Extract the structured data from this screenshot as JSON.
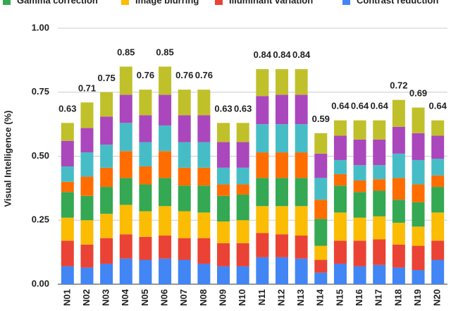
{
  "chart_data": {
    "type": "stacked_bar",
    "ylabel": "Visual Intelligence (%)",
    "categories": [
      "N01",
      "N02",
      "N03",
      "N04",
      "N05",
      "N06",
      "N07",
      "N08",
      "N09",
      "N10",
      "N11",
      "N12",
      "N13",
      "N14",
      "N15",
      "N16",
      "N17",
      "N18",
      "N19",
      "N20"
    ],
    "series": [
      {
        "name": "Contrast reduction",
        "color": "#4285f4",
        "values": [
          0.07,
          0.065,
          0.08,
          0.1,
          0.095,
          0.1,
          0.095,
          0.08,
          0.07,
          0.07,
          0.105,
          0.105,
          0.1,
          0.045,
          0.08,
          0.07,
          0.075,
          0.065,
          0.055,
          0.095
        ]
      },
      {
        "name": "Illuminant variation",
        "color": "#ea4335",
        "values": [
          0.1,
          0.09,
          0.1,
          0.095,
          0.09,
          0.09,
          0.085,
          0.1,
          0.09,
          0.09,
          0.095,
          0.09,
          0.09,
          0.05,
          0.09,
          0.1,
          0.1,
          0.09,
          0.095,
          0.075
        ]
      },
      {
        "name": "Image blurring",
        "color": "#fbbc04",
        "values": [
          0.09,
          0.095,
          0.095,
          0.115,
          0.1,
          0.115,
          0.105,
          0.1,
          0.085,
          0.09,
          0.105,
          0.11,
          0.115,
          0.055,
          0.11,
          0.09,
          0.09,
          0.085,
          0.075,
          0.11
        ]
      },
      {
        "name": "Gamma correction",
        "color": "#34a853",
        "values": [
          0.1,
          0.095,
          0.105,
          0.105,
          0.105,
          0.11,
          0.1,
          0.105,
          0.1,
          0.1,
          0.11,
          0.11,
          0.11,
          0.105,
          0.105,
          0.1,
          0.1,
          0.09,
          0.095,
          0.1
        ]
      },
      {
        "color": "#ff6d01",
        "values": [
          0.04,
          0.075,
          0.075,
          0.105,
          0.07,
          0.105,
          0.07,
          0.07,
          0.045,
          0.04,
          0.1,
          0.1,
          0.1,
          0.075,
          0.045,
          0.045,
          0.045,
          0.085,
          0.07,
          0.045
        ]
      },
      {
        "color": "#46bdc6",
        "values": [
          0.06,
          0.095,
          0.09,
          0.11,
          0.095,
          0.1,
          0.1,
          0.1,
          0.065,
          0.065,
          0.11,
          0.11,
          0.11,
          0.085,
          0.055,
          0.06,
          0.055,
          0.095,
          0.095,
          0.065
        ]
      },
      {
        "color": "#ab47bc",
        "values": [
          0.1,
          0.095,
          0.11,
          0.11,
          0.105,
          0.12,
          0.105,
          0.105,
          0.1,
          0.1,
          0.11,
          0.115,
          0.115,
          0.095,
          0.095,
          0.1,
          0.1,
          0.105,
          0.105,
          0.09
        ]
      },
      {
        "color": "#c0c02a",
        "values": [
          0.07,
          0.1,
          0.095,
          0.11,
          0.1,
          0.11,
          0.1,
          0.1,
          0.075,
          0.075,
          0.105,
          0.1,
          0.1,
          0.08,
          0.06,
          0.075,
          0.075,
          0.105,
          0.1,
          0.06
        ]
      }
    ],
    "totals": [
      0.63,
      0.71,
      0.75,
      0.85,
      0.76,
      0.85,
      0.76,
      0.76,
      0.63,
      0.63,
      0.84,
      0.84,
      0.84,
      0.59,
      0.64,
      0.64,
      0.64,
      0.72,
      0.69,
      0.64
    ],
    "ylim": [
      0,
      1
    ],
    "yticks": [
      {
        "value": 0,
        "label": "0.00"
      },
      {
        "value": 0.25,
        "label": "0.25"
      },
      {
        "value": 0.5,
        "label": "0.50"
      },
      {
        "value": 0.75,
        "label": "0.75"
      },
      {
        "value": 1,
        "label": "1.00"
      }
    ],
    "grid": true
  }
}
